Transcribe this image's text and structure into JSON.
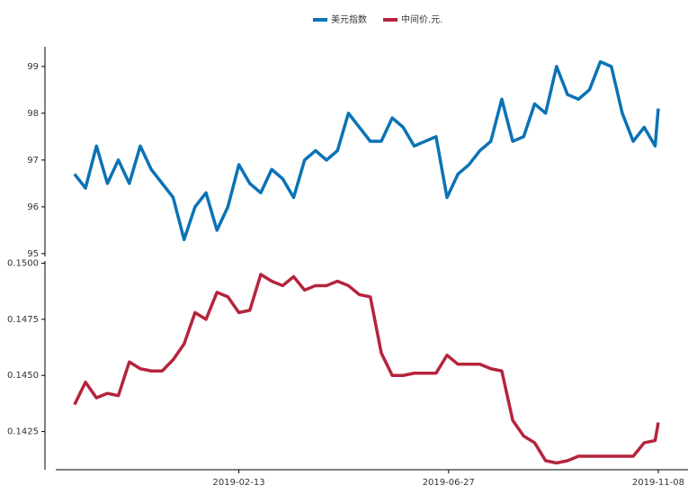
{
  "chart_data": [
    {
      "type": "line",
      "legend": "top",
      "x": [
        "2018-10-31",
        "2018-11-07",
        "2018-11-14",
        "2018-11-21",
        "2018-11-28",
        "2018-12-05",
        "2018-12-12",
        "2018-12-19",
        "2018-12-26",
        "2019-01-02",
        "2019-01-09",
        "2019-01-16",
        "2019-01-23",
        "2019-01-30",
        "2019-02-06",
        "2019-02-13",
        "2019-02-20",
        "2019-02-27",
        "2019-03-06",
        "2019-03-13",
        "2019-03-20",
        "2019-03-27",
        "2019-04-03",
        "2019-04-10",
        "2019-04-17",
        "2019-04-24",
        "2019-05-01",
        "2019-05-08",
        "2019-05-15",
        "2019-05-22",
        "2019-05-29",
        "2019-06-05",
        "2019-06-12",
        "2019-06-19",
        "2019-06-26",
        "2019-07-03",
        "2019-07-10",
        "2019-07-17",
        "2019-07-24",
        "2019-07-31",
        "2019-08-07",
        "2019-08-14",
        "2019-08-21",
        "2019-08-28",
        "2019-09-04",
        "2019-09-11",
        "2019-09-18",
        "2019-09-25",
        "2019-10-02",
        "2019-10-09",
        "2019-10-16",
        "2019-10-23",
        "2019-10-30",
        "2019-11-06",
        "2019-11-08"
      ],
      "xlim": [
        "2018-10-19",
        "2019-11-27"
      ],
      "series": [
        {
          "name": "美元指数",
          "color": "#0b72b5",
          "values": [
            96.7,
            96.4,
            97.3,
            96.5,
            97.0,
            96.5,
            97.3,
            96.8,
            96.5,
            96.2,
            95.3,
            96.0,
            96.3,
            95.5,
            96.0,
            96.9,
            96.5,
            96.3,
            96.8,
            96.6,
            96.2,
            97.0,
            97.2,
            97.0,
            97.2,
            98.0,
            97.7,
            97.4,
            97.4,
            97.9,
            97.7,
            97.3,
            97.4,
            97.5,
            96.2,
            96.7,
            96.9,
            97.2,
            97.4,
            98.3,
            97.4,
            97.5,
            98.2,
            98.0,
            99.0,
            98.4,
            98.3,
            98.5,
            99.1,
            99.0,
            98.0,
            97.4,
            97.7,
            97.3,
            98.1
          ]
        }
      ],
      "ylim": [
        94.94,
        99.42
      ],
      "yticks": [
        95,
        96,
        97,
        98,
        99
      ]
    },
    {
      "type": "line",
      "x": [
        "2018-10-31",
        "2018-11-07",
        "2018-11-14",
        "2018-11-21",
        "2018-11-28",
        "2018-12-05",
        "2018-12-12",
        "2018-12-19",
        "2018-12-26",
        "2019-01-02",
        "2019-01-09",
        "2019-01-16",
        "2019-01-23",
        "2019-01-30",
        "2019-02-06",
        "2019-02-13",
        "2019-02-20",
        "2019-02-27",
        "2019-03-06",
        "2019-03-13",
        "2019-03-20",
        "2019-03-27",
        "2019-04-03",
        "2019-04-10",
        "2019-04-17",
        "2019-04-24",
        "2019-05-01",
        "2019-05-08",
        "2019-05-15",
        "2019-05-22",
        "2019-05-29",
        "2019-06-05",
        "2019-06-12",
        "2019-06-19",
        "2019-06-26",
        "2019-07-03",
        "2019-07-10",
        "2019-07-17",
        "2019-07-24",
        "2019-07-31",
        "2019-08-07",
        "2019-08-14",
        "2019-08-21",
        "2019-08-28",
        "2019-09-04",
        "2019-09-11",
        "2019-09-18",
        "2019-09-25",
        "2019-10-02",
        "2019-10-09",
        "2019-10-16",
        "2019-10-23",
        "2019-10-30",
        "2019-11-06",
        "2019-11-08"
      ],
      "xlim": [
        "2018-10-19",
        "2019-11-27"
      ],
      "xticks": [
        "2019-02-13",
        "2019-06-27",
        "2019-11-08"
      ],
      "series": [
        {
          "name": "中间价.元.",
          "color": "#b5243c",
          "values": [
            0.1437,
            0.1447,
            0.144,
            0.1442,
            0.1441,
            0.1456,
            0.1453,
            0.1452,
            0.1452,
            0.1457,
            0.1464,
            0.1478,
            0.1475,
            0.1487,
            0.1485,
            0.1478,
            0.1479,
            0.1495,
            0.1492,
            0.149,
            0.1494,
            0.1488,
            0.149,
            0.149,
            0.1492,
            0.149,
            0.1486,
            0.1485,
            0.146,
            0.145,
            0.145,
            0.1451,
            0.1451,
            0.1451,
            0.1459,
            0.1455,
            0.1455,
            0.1455,
            0.1453,
            0.1452,
            0.143,
            0.1423,
            0.142,
            0.1412,
            0.1411,
            0.1412,
            0.1414,
            0.1414,
            0.1414,
            0.1414,
            0.1414,
            0.1414,
            0.142,
            0.1421,
            0.1429
          ]
        }
      ],
      "ylim": [
        0.1408,
        0.1501
      ],
      "yticks": [
        0.1425,
        {
          "value": 0.145,
          "label": "0.1450"
        },
        0.1475,
        {
          "value": 0.15,
          "label": "0.1500"
        }
      ]
    }
  ]
}
